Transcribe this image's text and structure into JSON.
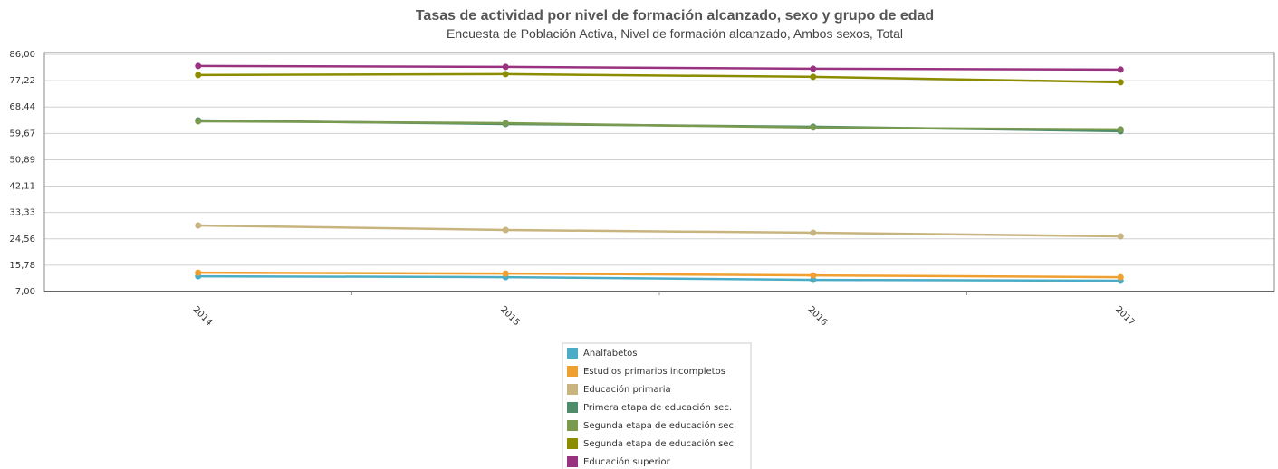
{
  "chart_data": {
    "type": "line",
    "title": "Tasas de actividad por nivel de formación alcanzado, sexo y grupo de edad",
    "subtitle": "Encuesta de Población Activa, Nivel de formación alcanzado, Ambos sexos, Total",
    "categories": [
      "2014",
      "2015",
      "2016",
      "2017"
    ],
    "ylim": [
      7,
      86
    ],
    "yticks": [
      {
        "value": 7,
        "label": "7,00"
      },
      {
        "value": 15.78,
        "label": "15,78"
      },
      {
        "value": 24.56,
        "label": "24,56"
      },
      {
        "value": 33.33,
        "label": "33,33"
      },
      {
        "value": 42.11,
        "label": "42,11"
      },
      {
        "value": 50.89,
        "label": "50,89"
      },
      {
        "value": 59.67,
        "label": "59,67"
      },
      {
        "value": 68.44,
        "label": "68,44"
      },
      {
        "value": 77.22,
        "label": "77,22"
      },
      {
        "value": 86,
        "label": "86,00"
      }
    ],
    "grid": true,
    "legend": "bottom",
    "series": [
      {
        "name": "Analfabetos",
        "color": "#4bacc6",
        "values": [
          12.1,
          11.8,
          10.9,
          10.6
        ]
      },
      {
        "name": "Estudios primarios incompletos",
        "color": "#f0a030",
        "values": [
          13.3,
          13.0,
          12.4,
          11.8
        ]
      },
      {
        "name": "Educación primaria",
        "color": "#c8b47e",
        "values": [
          29.0,
          27.5,
          26.6,
          25.4
        ]
      },
      {
        "name": "Primera etapa de educación sec.",
        "color": "#4e8c6a",
        "values": [
          64.0,
          62.8,
          61.9,
          60.4
        ]
      },
      {
        "name": "Segunda etapa de educación sec.",
        "color": "#7a9a50",
        "values": [
          63.7,
          63.1,
          61.6,
          61.0
        ]
      },
      {
        "name": "Segunda etapa de educación sec.",
        "color": "#8c8c00",
        "values": [
          79.1,
          79.4,
          78.5,
          76.7
        ]
      },
      {
        "name": "Educación superior",
        "color": "#993380",
        "values": [
          82.1,
          81.8,
          81.2,
          80.9
        ]
      }
    ]
  }
}
